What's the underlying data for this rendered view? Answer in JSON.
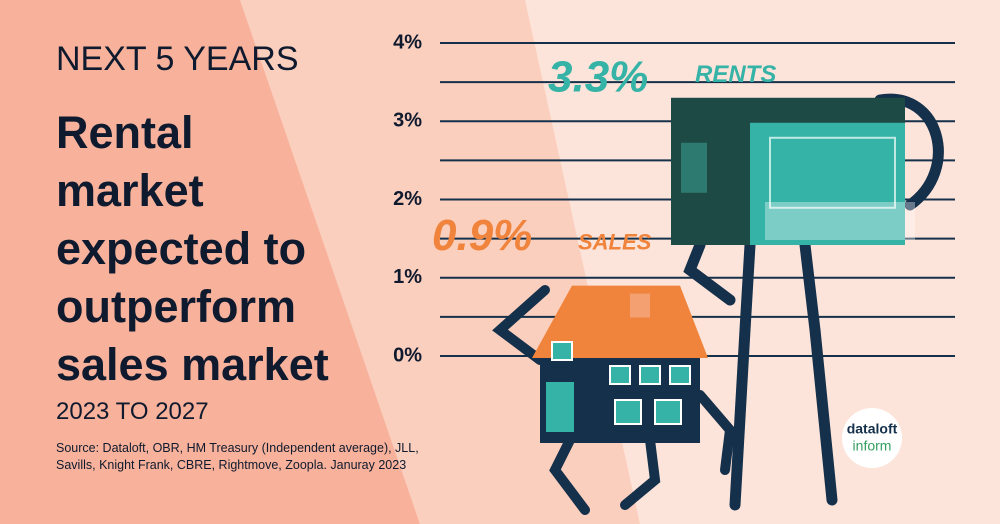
{
  "heading": "NEXT 5 YEARS",
  "title_lines": [
    "Rental",
    "market",
    "expected to",
    "outperform",
    "sales market"
  ],
  "subtitle": "2023 TO 2027",
  "source_lines": [
    "Source: Dataloft, OBR, HM Treasury (Independent average), JLL,",
    "Savills, Knight Frank, CBRE, Rightmove, Zoopla. Januray 2023"
  ],
  "logo": {
    "top": "dataloft",
    "bottom": "inform"
  },
  "chart_data": {
    "type": "figure-bar",
    "series": [
      {
        "name": "RENTS",
        "color": "#35b3a6",
        "values": [
          3.3
        ],
        "value_labels": [
          "3.3%"
        ]
      },
      {
        "name": "SALES",
        "color": "#f0843c",
        "values": [
          0.9
        ],
        "value_labels": [
          "0.9%"
        ]
      }
    ],
    "ylim": [
      0,
      4
    ],
    "yticks": [
      {
        "value": 0,
        "label": "0%"
      },
      {
        "value": 1,
        "label": "1%"
      },
      {
        "value": 2,
        "label": "2%"
      },
      {
        "value": 3,
        "label": "3%"
      },
      {
        "value": 4,
        "label": "4%"
      }
    ],
    "minor_yticks": [
      0.5,
      1.5,
      2.5,
      3.5
    ],
    "grid": true
  }
}
